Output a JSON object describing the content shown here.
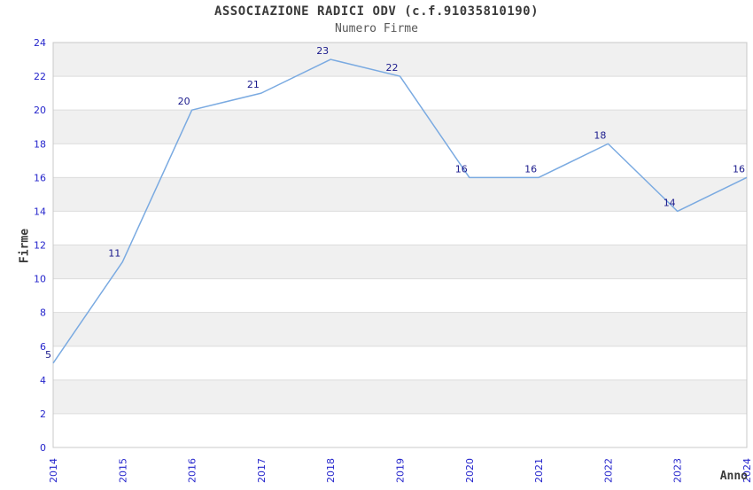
{
  "header": {
    "title": "ASSOCIAZIONE RADICI ODV (c.f.91035810190)",
    "subtitle": "Numero Firme"
  },
  "chart_data": {
    "type": "line",
    "title": "ASSOCIAZIONE RADICI ODV (c.f.91035810190)",
    "subtitle": "Numero Firme",
    "xlabel": "Anno",
    "ylabel": "Firme",
    "x": [
      2014,
      2015,
      2016,
      2017,
      2018,
      2019,
      2020,
      2021,
      2022,
      2023,
      2024
    ],
    "values": [
      5,
      11,
      20,
      21,
      23,
      22,
      16,
      16,
      18,
      14,
      16
    ],
    "ylim": [
      0,
      24
    ],
    "ytick_step": 2,
    "grid": "horizontal-bands",
    "legend": "none",
    "colors": {
      "line": "#7aaae1",
      "point_label": "#1a1a8c",
      "tick_label": "#2626cc",
      "band_gray": "#f0f0f0",
      "band_white": "#ffffff",
      "gridline": "#dcdcdc",
      "plot_border": "#c8c8c8",
      "title": "#3a3a3a"
    }
  }
}
